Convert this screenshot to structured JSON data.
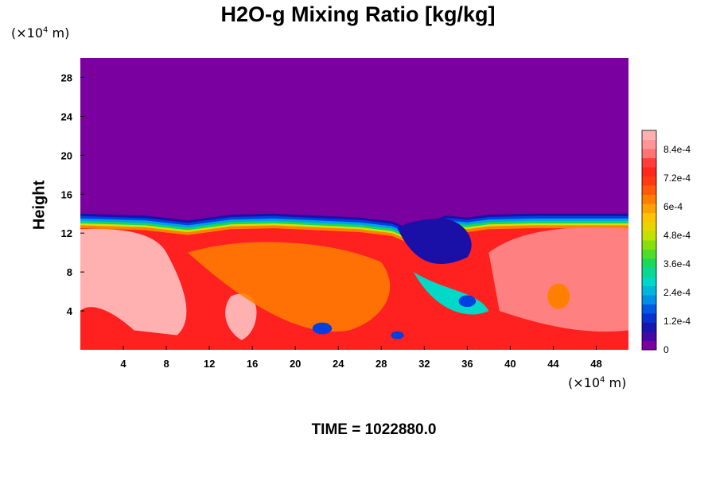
{
  "chart_data": {
    "type": "heatmap",
    "title": "H2O-g Mixing Ratio [kg/kg]",
    "ylabel": "Height",
    "xlabel": "",
    "x_unit_prefix": "(×10",
    "unit_exponent": "4",
    "unit_suffix": " m)",
    "footer": "TIME = 1022880.0",
    "xlim": [
      0,
      51
    ],
    "ylim": [
      0,
      30
    ],
    "x_ticks": [
      "4",
      "8",
      "12",
      "16",
      "20",
      "24",
      "28",
      "32",
      "36",
      "40",
      "44",
      "48"
    ],
    "x_tick_values": [
      4,
      8,
      12,
      16,
      20,
      24,
      28,
      32,
      36,
      40,
      44,
      48
    ],
    "y_ticks": [
      "4",
      "8",
      "12",
      "16",
      "20",
      "24",
      "28"
    ],
    "y_tick_values": [
      4,
      8,
      12,
      16,
      20,
      24,
      28
    ],
    "colorbar": {
      "vmin": 0,
      "vmax": 0.00092,
      "tick_labels": [
        "0",
        "1.2e-4",
        "2.4e-4",
        "3.6e-4",
        "4.8e-4",
        "6e-4",
        "7.2e-4",
        "8.4e-4"
      ],
      "tick_values": [
        0,
        0.00012,
        0.00024,
        0.00036,
        0.00048,
        0.0006,
        0.00072,
        0.00084
      ],
      "colors": [
        "#7a00a0",
        "#1a10a8",
        "#0040e0",
        "#00a0e8",
        "#00d8c8",
        "#10d860",
        "#70e010",
        "#d8e000",
        "#ffc000",
        "#ff8000",
        "#ff4010",
        "#ff2020",
        "#ff8080",
        "#ffb0b0"
      ]
    },
    "moist_layer_top_profile": {
      "x": [
        0,
        6,
        10,
        14,
        18,
        22,
        26,
        29,
        30.5,
        32,
        34,
        36,
        38,
        42,
        46,
        51
      ],
      "y": [
        14,
        13.8,
        13.3,
        13.9,
        14.0,
        13.8,
        13.6,
        13.2,
        12.5,
        13.0,
        13.8,
        13.6,
        13.9,
        14.0,
        14.0,
        14.0
      ]
    }
  }
}
